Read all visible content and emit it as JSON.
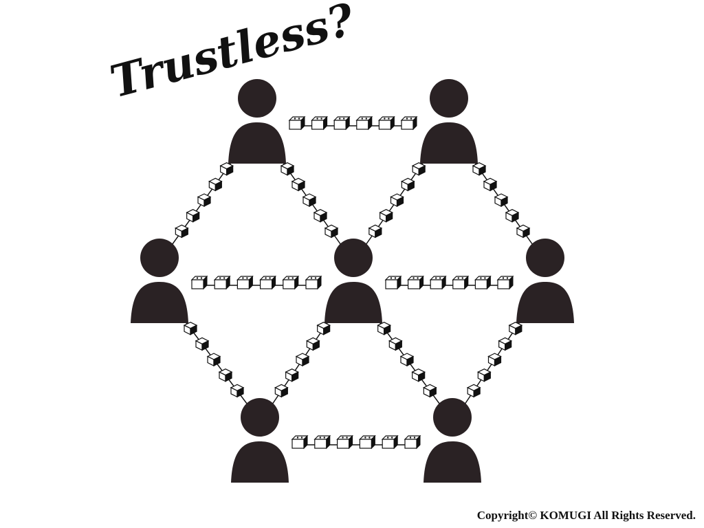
{
  "title": "Trustless?",
  "copyright": "Copyright© KOMUGI All Rights Reserved.",
  "diagram": {
    "nodes": [
      {
        "id": "top-left"
      },
      {
        "id": "top-right"
      },
      {
        "id": "mid-left"
      },
      {
        "id": "center"
      },
      {
        "id": "mid-right"
      },
      {
        "id": "bottom-left"
      },
      {
        "id": "bottom-right"
      }
    ],
    "chains": [
      {
        "from": "top-left",
        "to": "top-right",
        "style": "horizontal-blocks",
        "blocks": 6
      },
      {
        "from": "mid-left",
        "to": "center",
        "style": "horizontal-blocks",
        "blocks": 6
      },
      {
        "from": "center",
        "to": "mid-right",
        "style": "horizontal-blocks",
        "blocks": 6
      },
      {
        "from": "bottom-left",
        "to": "bottom-right",
        "style": "horizontal-blocks",
        "blocks": 6
      },
      {
        "from": "top-left",
        "to": "mid-left",
        "style": "diagonal-cubes",
        "blocks": 5
      },
      {
        "from": "top-left",
        "to": "center",
        "style": "diagonal-cubes",
        "blocks": 5
      },
      {
        "from": "top-right",
        "to": "center",
        "style": "diagonal-cubes",
        "blocks": 5
      },
      {
        "from": "top-right",
        "to": "mid-right",
        "style": "diagonal-cubes",
        "blocks": 5
      },
      {
        "from": "mid-left",
        "to": "bottom-left",
        "style": "diagonal-cubes",
        "blocks": 5
      },
      {
        "from": "center",
        "to": "bottom-left",
        "style": "diagonal-cubes",
        "blocks": 5
      },
      {
        "from": "center",
        "to": "bottom-right",
        "style": "diagonal-cubes",
        "blocks": 5
      },
      {
        "from": "mid-right",
        "to": "bottom-right",
        "style": "diagonal-cubes",
        "blocks": 5
      }
    ],
    "colors": {
      "person": "#2a2224",
      "block_fill": "#ffffff",
      "block_stroke": "#111111",
      "chain": "#111111"
    }
  }
}
